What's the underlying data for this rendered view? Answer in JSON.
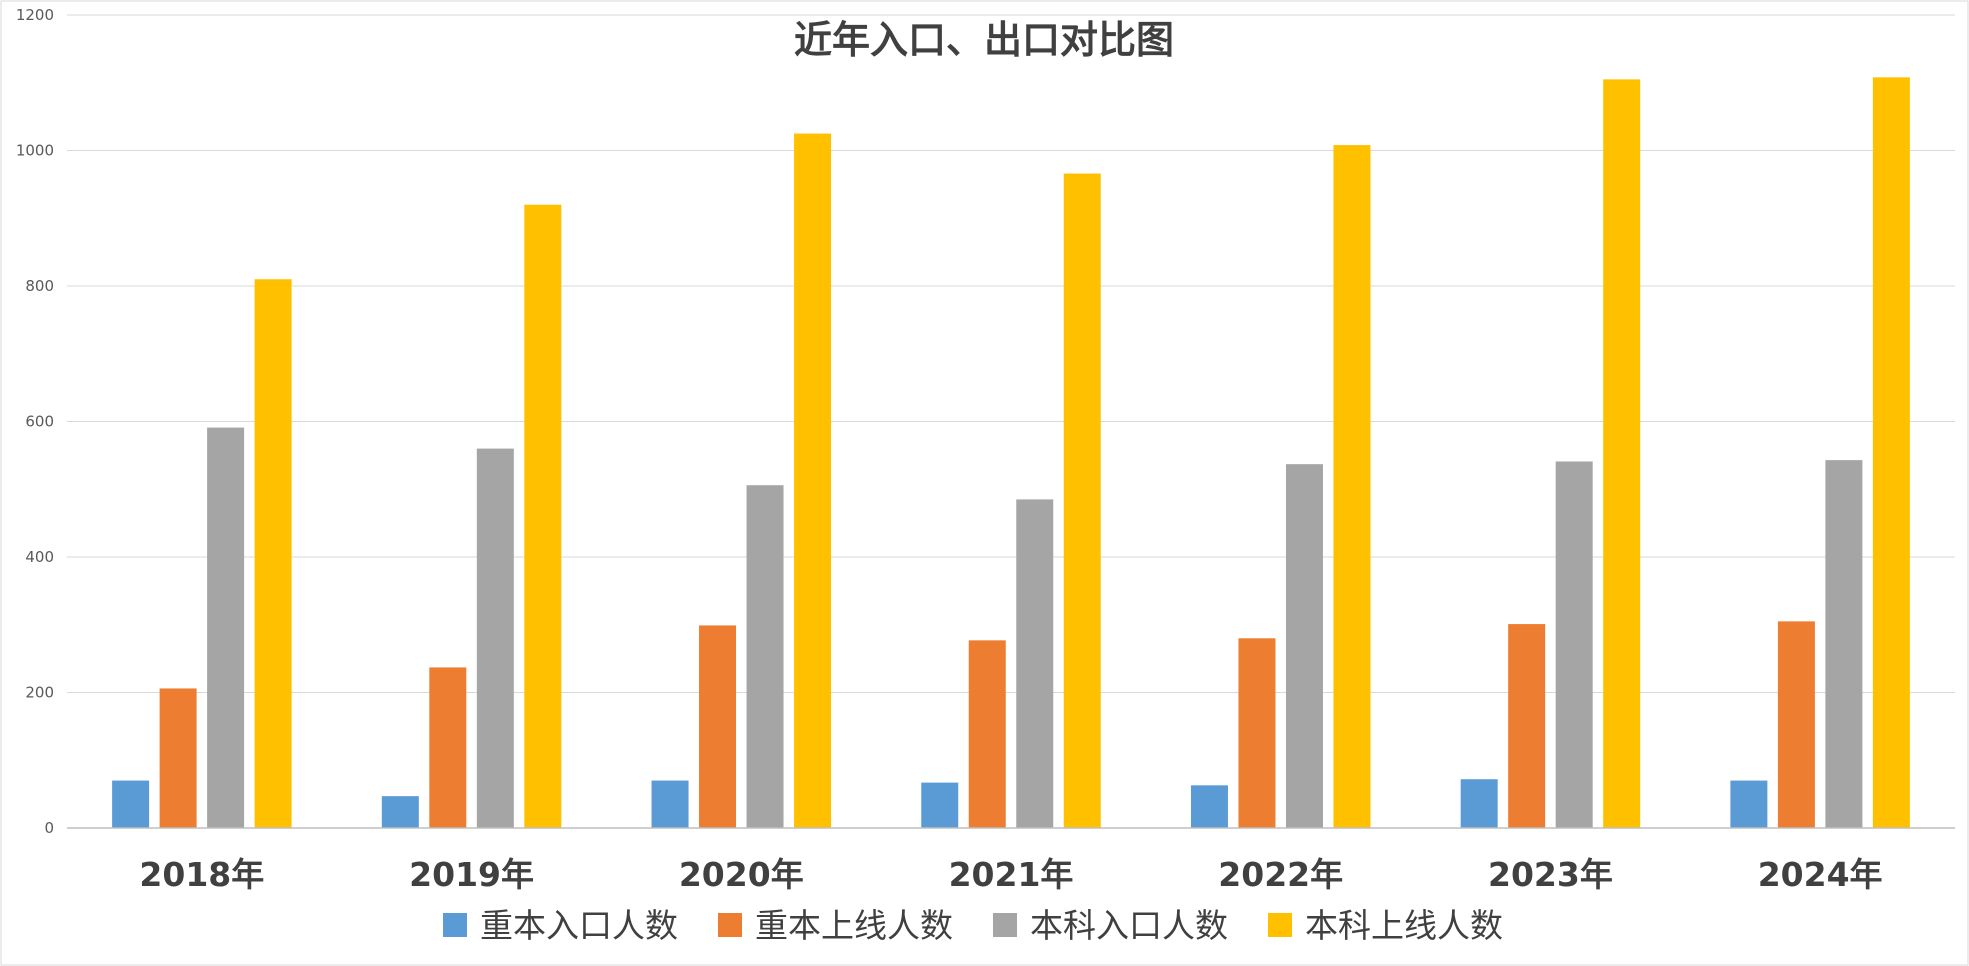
{
  "chart_data": {
    "type": "bar",
    "title": "近年入口、出口对比图",
    "xlabel": "",
    "ylabel": "",
    "ylim": [
      0,
      1200
    ],
    "yticks": [
      0,
      200,
      400,
      600,
      800,
      1000,
      1200
    ],
    "grid": true,
    "legend_position": "bottom",
    "categories": [
      "2018年",
      "2019年",
      "2020年",
      "2021年",
      "2022年",
      "2023年",
      "2024年"
    ],
    "series": [
      {
        "name": "重本入口人数",
        "color": "#5b9bd5",
        "values": [
          70,
          47,
          70,
          67,
          63,
          72,
          70
        ]
      },
      {
        "name": "重本上线人数",
        "color": "#ed7d31",
        "values": [
          206,
          237,
          299,
          277,
          280,
          301,
          305
        ]
      },
      {
        "name": "本科入口人数",
        "color": "#a5a5a5",
        "values": [
          591,
          560,
          506,
          485,
          537,
          541,
          543
        ]
      },
      {
        "name": "本科上线人数",
        "color": "#ffc000",
        "values": [
          810,
          920,
          1025,
          966,
          1008,
          1105,
          1108
        ]
      }
    ]
  }
}
